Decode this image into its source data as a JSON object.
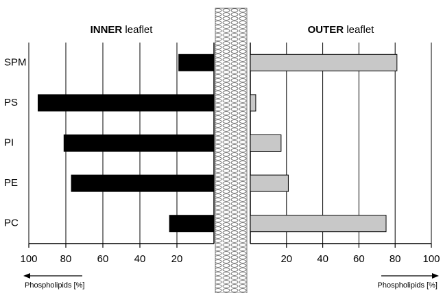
{
  "chart_data": {
    "type": "bar",
    "categories": [
      "SPM",
      "PS",
      "PI",
      "PE",
      "PC"
    ],
    "series": [
      {
        "name": "INNER",
        "name_rest": "leaflet",
        "color": "#000000",
        "values": [
          19,
          95,
          81,
          77,
          24
        ],
        "xlim": [
          100,
          0
        ],
        "xticks": [
          100,
          80,
          60,
          40,
          20
        ],
        "xlabel": "Phospholipids [%]"
      },
      {
        "name": "OUTER",
        "name_rest": "leaflet",
        "color": "#c8c8c8",
        "values": [
          81,
          3,
          17,
          21,
          75
        ],
        "xlim": [
          0,
          100
        ],
        "xticks": [
          20,
          40,
          60,
          80,
          100
        ],
        "xlabel": "Phospholipids [%]"
      }
    ],
    "grid": true
  }
}
